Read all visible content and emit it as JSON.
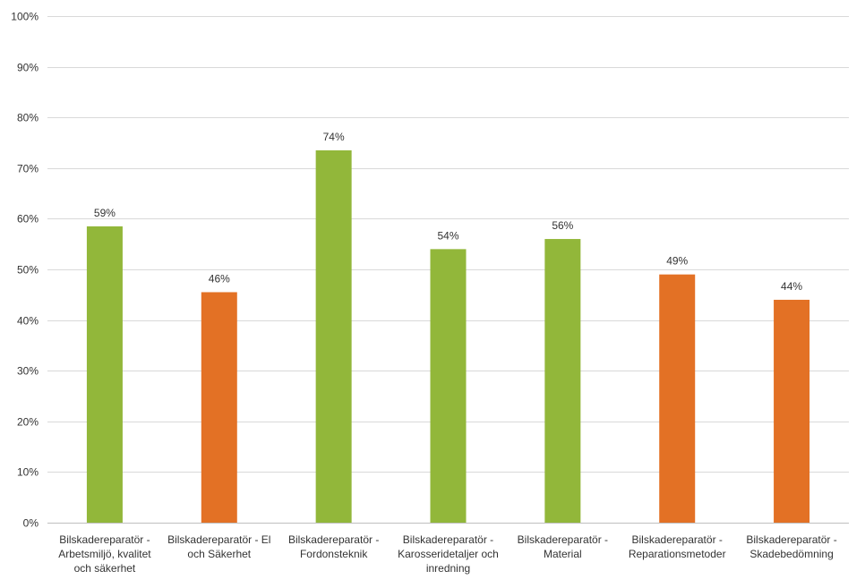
{
  "chart_data": {
    "type": "bar",
    "categories": [
      [
        "Bilskadereparatör -",
        "Arbetsmiljö, kvalitet",
        "och säkerhet"
      ],
      [
        "Bilskadereparatör - El",
        "och Säkerhet"
      ],
      [
        "Bilskadereparatör -",
        "Fordonsteknik"
      ],
      [
        "Bilskadereparatör -",
        "Karosseridetaljer och",
        "inredning"
      ],
      [
        "Bilskadereparatör -",
        "Material"
      ],
      [
        "Bilskadereparatör -",
        "Reparationsmetoder"
      ],
      [
        "Bilskadereparatör -",
        "Skadebedömning"
      ]
    ],
    "values": [
      0.585,
      0.455,
      0.735,
      0.54,
      0.56,
      0.49,
      0.44
    ],
    "data_labels": [
      "59%",
      "46%",
      "74%",
      "54%",
      "56%",
      "49%",
      "44%"
    ],
    "bar_colors": [
      "#92b73a",
      "#e37125",
      "#92b73a",
      "#92b73a",
      "#92b73a",
      "#e37125",
      "#e37125"
    ],
    "ylim": [
      0,
      1
    ],
    "y_ticks": [
      0,
      0.1,
      0.2,
      0.3,
      0.4,
      0.5,
      0.6,
      0.7,
      0.8,
      0.9,
      1.0
    ],
    "y_tick_labels": [
      "0%",
      "10%",
      "20%",
      "30%",
      "40%",
      "50%",
      "60%",
      "70%",
      "80%",
      "90%",
      "100%"
    ],
    "grid": true,
    "title": "",
    "xlabel": "",
    "ylabel": "",
    "gridline_color": "#d9d9d9",
    "axis_color": "#bfbfbf"
  }
}
